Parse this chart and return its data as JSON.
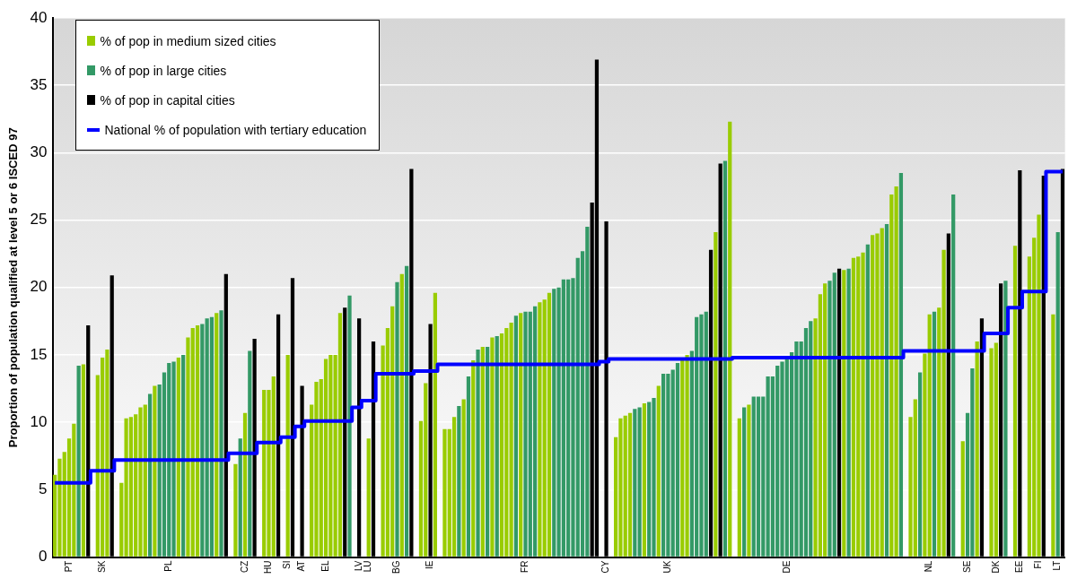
{
  "chart_data": {
    "type": "bar",
    "ylabel": "Proportion of population qualified at level 5 or 6 ISCED 97",
    "ylim": [
      0,
      40
    ],
    "yticks": [
      0,
      5,
      10,
      15,
      20,
      25,
      30,
      35,
      40
    ],
    "grid": "y",
    "legend": "top left",
    "categories": [
      null,
      null,
      null,
      "PT",
      null,
      null,
      null,
      null,
      null,
      null,
      "SK",
      null,
      null,
      null,
      null,
      null,
      null,
      null,
      null,
      null,
      null,
      null,
      null,
      null,
      "PL",
      null,
      null,
      null,
      null,
      null,
      null,
      null,
      null,
      null,
      null,
      null,
      null,
      null,
      null,
      null,
      "CZ",
      null,
      null,
      null,
      null,
      "HU",
      null,
      null,
      null,
      "SI",
      null,
      null,
      "AT",
      null,
      null,
      null,
      null,
      "EL",
      null,
      null,
      null,
      null,
      null,
      null,
      "LV",
      null,
      "LU",
      null,
      null,
      null,
      null,
      null,
      "BG",
      null,
      null,
      null,
      null,
      null,
      null,
      "IE",
      null,
      null,
      null,
      null,
      null,
      null,
      null,
      null,
      null,
      null,
      null,
      null,
      null,
      null,
      null,
      null,
      null,
      null,
      null,
      "FR",
      null,
      null,
      null,
      null,
      null,
      null,
      null,
      null,
      null,
      null,
      null,
      null,
      null,
      null,
      null,
      null,
      "CY",
      null,
      null,
      null,
      null,
      null,
      null,
      null,
      null,
      null,
      null,
      null,
      null,
      "UK",
      null,
      null,
      null,
      null,
      null,
      null,
      null,
      null,
      null,
      null,
      null,
      null,
      null,
      null,
      null,
      null,
      null,
      null,
      null,
      null,
      null,
      null,
      null,
      null,
      "DE",
      null,
      null,
      null,
      null,
      null,
      null,
      null,
      null,
      null,
      null,
      null,
      null,
      null,
      null,
      null,
      null,
      null,
      null,
      null,
      null,
      null,
      null,
      null,
      null,
      null,
      null,
      null,
      null,
      null,
      "NL",
      null,
      null,
      null,
      null,
      null,
      null,
      null,
      "SE",
      null,
      null,
      null,
      null,
      null,
      "DK",
      null,
      null,
      null,
      null,
      "EE",
      null,
      null,
      null,
      "FI",
      null,
      null,
      null,
      "LT",
      null
    ],
    "series": [
      {
        "name": "% of pop in medium sized cities",
        "color": "#99cc00",
        "values": [
          6.1,
          7.3,
          7.8,
          8.8,
          9.9,
          null,
          14.3,
          null,
          null,
          13.5,
          14.8,
          15.4,
          null,
          null,
          5.5,
          10.3,
          10.4,
          10.6,
          11.1,
          11.3,
          null,
          12.7,
          null,
          null,
          null,
          null,
          14.8,
          null,
          16.3,
          17.0,
          17.2,
          null,
          null,
          null,
          18.1,
          null,
          null,
          null,
          6.9,
          null,
          10.7,
          null,
          null,
          null,
          12.4,
          12.4,
          13.4,
          null,
          null,
          15.0,
          null,
          null,
          null,
          null,
          11.3,
          13.0,
          13.2,
          14.7,
          15.0,
          15.0,
          18.1,
          null,
          null,
          null,
          null,
          null,
          8.8,
          null,
          null,
          15.7,
          17.0,
          18.6,
          null,
          21.0,
          null,
          null,
          null,
          10.1,
          12.9,
          null,
          19.6,
          null,
          9.5,
          9.5,
          10.4,
          null,
          11.7,
          null,
          14.6,
          null,
          15.6,
          null,
          16.3,
          null,
          16.6,
          17.0,
          17.4,
          null,
          18.1,
          null,
          null,
          null,
          18.9,
          19.1,
          19.6,
          null,
          null,
          null,
          null,
          null,
          null,
          null,
          null,
          null,
          null,
          null,
          null,
          null,
          8.9,
          10.3,
          10.5,
          10.7,
          null,
          null,
          11.4,
          null,
          null,
          12.7,
          null,
          null,
          null,
          null,
          14.8,
          15.0,
          null,
          null,
          null,
          null,
          null,
          24.1,
          null,
          null,
          32.3,
          null,
          10.3,
          null,
          11.3,
          null,
          null,
          null,
          null,
          null,
          null,
          null,
          null,
          null,
          null,
          null,
          null,
          null,
          17.7,
          19.5,
          20.3,
          null,
          null,
          null,
          21.3,
          null,
          22.2,
          22.3,
          22.6,
          null,
          23.9,
          24.0,
          24.4,
          null,
          26.9,
          27.5,
          null,
          null,
          10.4,
          11.7,
          null,
          15.1,
          18.0,
          null,
          18.5,
          22.8,
          null,
          null,
          null,
          8.6,
          null,
          null,
          16.0,
          null,
          null,
          15.5,
          15.9,
          null,
          null,
          null,
          23.1,
          null,
          null,
          22.3,
          23.7,
          25.4,
          null,
          null,
          18.0,
          null,
          null
        ]
      },
      {
        "name": "% of pop in large cities",
        "color": "#339966",
        "values": [
          null,
          null,
          null,
          null,
          null,
          14.2,
          null,
          null,
          null,
          null,
          null,
          null,
          null,
          null,
          null,
          null,
          null,
          null,
          null,
          null,
          12.1,
          null,
          12.8,
          13.7,
          14.4,
          14.5,
          null,
          15.0,
          null,
          null,
          null,
          17.3,
          17.7,
          17.8,
          null,
          18.3,
          null,
          null,
          null,
          8.8,
          null,
          15.3,
          null,
          null,
          null,
          null,
          null,
          null,
          null,
          null,
          null,
          null,
          null,
          null,
          null,
          null,
          null,
          null,
          null,
          null,
          null,
          null,
          19.4,
          null,
          null,
          null,
          null,
          null,
          null,
          null,
          null,
          null,
          20.4,
          null,
          21.6,
          null,
          null,
          null,
          null,
          null,
          null,
          null,
          null,
          null,
          null,
          11.2,
          null,
          13.4,
          null,
          15.4,
          null,
          15.6,
          null,
          16.4,
          null,
          null,
          null,
          17.9,
          null,
          18.2,
          18.2,
          18.6,
          null,
          null,
          null,
          19.9,
          20.0,
          20.6,
          20.6,
          20.7,
          22.2,
          22.7,
          24.5,
          null,
          null,
          null,
          null,
          null,
          null,
          null,
          null,
          null,
          11.0,
          11.1,
          null,
          11.5,
          11.8,
          null,
          13.6,
          13.6,
          13.9,
          14.4,
          null,
          null,
          15.3,
          17.8,
          18.0,
          18.2,
          null,
          null,
          null,
          29.4,
          null,
          null,
          null,
          11.1,
          null,
          11.9,
          11.9,
          11.9,
          13.4,
          13.4,
          14.2,
          14.5,
          14.7,
          15.2,
          16.0,
          16.0,
          17.0,
          17.5,
          null,
          null,
          null,
          20.5,
          21.1,
          null,
          null,
          21.4,
          null,
          null,
          null,
          23.2,
          null,
          null,
          null,
          24.7,
          null,
          null,
          28.5,
          null,
          null,
          null,
          13.7,
          null,
          null,
          18.2,
          null,
          null,
          null,
          26.9,
          null,
          null,
          10.7,
          14.0,
          null,
          null,
          null,
          null,
          null,
          null,
          20.5,
          null,
          null,
          null,
          null,
          null,
          null,
          null,
          null,
          null,
          null,
          24.1,
          null
        ]
      },
      {
        "name": "% of pop in capital cities",
        "color": "#000000",
        "values": [
          null,
          null,
          null,
          null,
          null,
          null,
          null,
          17.2,
          null,
          null,
          null,
          null,
          20.9,
          null,
          null,
          null,
          null,
          null,
          null,
          null,
          null,
          null,
          null,
          null,
          null,
          null,
          null,
          null,
          null,
          null,
          null,
          null,
          null,
          null,
          null,
          null,
          21.0,
          null,
          null,
          null,
          null,
          null,
          16.2,
          null,
          null,
          null,
          null,
          18.0,
          null,
          null,
          20.7,
          null,
          12.7,
          null,
          null,
          null,
          null,
          null,
          null,
          null,
          null,
          18.5,
          null,
          null,
          17.7,
          null,
          null,
          16.0,
          null,
          null,
          null,
          null,
          null,
          null,
          null,
          28.8,
          null,
          null,
          null,
          17.3,
          null,
          null,
          null,
          null,
          null,
          null,
          null,
          null,
          null,
          null,
          null,
          null,
          null,
          null,
          null,
          null,
          null,
          null,
          null,
          null,
          null,
          null,
          null,
          null,
          null,
          null,
          null,
          null,
          null,
          null,
          null,
          null,
          null,
          26.3,
          36.9,
          null,
          24.9,
          null,
          null,
          null,
          null,
          null,
          null,
          null,
          null,
          null,
          null,
          null,
          null,
          null,
          null,
          null,
          null,
          null,
          null,
          null,
          null,
          null,
          22.8,
          null,
          29.2,
          null,
          null,
          null,
          null,
          null,
          null,
          null,
          null,
          null,
          null,
          null,
          null,
          null,
          null,
          null,
          null,
          null,
          null,
          null,
          null,
          null,
          null,
          null,
          null,
          21.4,
          null,
          null,
          null,
          null,
          null,
          null,
          null,
          null,
          null,
          null,
          null,
          null,
          null,
          null,
          null,
          null,
          null,
          null,
          null,
          null,
          null,
          null,
          24.0,
          null,
          null,
          null,
          null,
          null,
          null,
          17.7,
          null,
          null,
          null,
          20.3,
          null,
          null,
          null,
          28.7,
          null,
          null,
          null,
          null,
          28.3,
          null,
          null,
          null,
          28.8
        ]
      },
      {
        "name": "National % of population with tertiary education",
        "type": "step",
        "color": "#0000ff",
        "values": [
          5.5,
          5.5,
          5.5,
          5.5,
          5.5,
          5.5,
          5.5,
          5.5,
          6.4,
          6.4,
          6.4,
          6.4,
          6.4,
          7.2,
          7.2,
          7.2,
          7.2,
          7.2,
          7.2,
          7.2,
          7.2,
          7.2,
          7.2,
          7.2,
          7.2,
          7.2,
          7.2,
          7.2,
          7.2,
          7.2,
          7.2,
          7.2,
          7.2,
          7.2,
          7.2,
          7.2,
          7.2,
          7.7,
          7.7,
          7.7,
          7.7,
          7.7,
          7.7,
          8.5,
          8.5,
          8.5,
          8.5,
          8.5,
          8.9,
          8.9,
          8.9,
          9.7,
          9.7,
          10.1,
          10.1,
          10.1,
          10.1,
          10.1,
          10.1,
          10.1,
          10.1,
          10.1,
          10.1,
          11.1,
          11.1,
          11.6,
          11.6,
          11.6,
          13.6,
          13.6,
          13.6,
          13.6,
          13.6,
          13.6,
          13.6,
          13.6,
          13.8,
          13.8,
          13.8,
          13.8,
          13.8,
          14.3,
          14.3,
          14.3,
          14.3,
          14.3,
          14.3,
          14.3,
          14.3,
          14.3,
          14.3,
          14.3,
          14.3,
          14.3,
          14.3,
          14.3,
          14.3,
          14.3,
          14.3,
          14.3,
          14.3,
          14.3,
          14.3,
          14.3,
          14.3,
          14.3,
          14.3,
          14.3,
          14.3,
          14.3,
          14.3,
          14.3,
          14.3,
          14.3,
          14.3,
          14.5,
          14.5,
          14.7,
          14.7,
          14.7,
          14.7,
          14.7,
          14.7,
          14.7,
          14.7,
          14.7,
          14.7,
          14.7,
          14.7,
          14.7,
          14.7,
          14.7,
          14.7,
          14.7,
          14.7,
          14.7,
          14.7,
          14.7,
          14.7,
          14.7,
          14.7,
          14.7,
          14.7,
          14.8,
          14.8,
          14.8,
          14.8,
          14.8,
          14.8,
          14.8,
          14.8,
          14.8,
          14.8,
          14.8,
          14.8,
          14.8,
          14.8,
          14.8,
          14.8,
          14.8,
          14.8,
          14.8,
          14.8,
          14.8,
          14.8,
          14.8,
          14.8,
          14.8,
          14.8,
          14.8,
          14.8,
          14.8,
          14.8,
          14.8,
          14.8,
          14.8,
          14.8,
          14.8,
          14.8,
          15.3,
          15.3,
          15.3,
          15.3,
          15.3,
          15.3,
          15.3,
          15.3,
          15.3,
          15.3,
          15.3,
          15.3,
          15.3,
          15.3,
          15.3,
          15.3,
          15.3,
          16.6,
          16.6,
          16.6,
          16.6,
          16.6,
          18.5,
          18.5,
          18.5,
          19.7,
          19.7,
          19.7,
          19.7,
          19.7,
          28.6,
          28.6,
          28.6,
          28.6
        ]
      }
    ]
  }
}
